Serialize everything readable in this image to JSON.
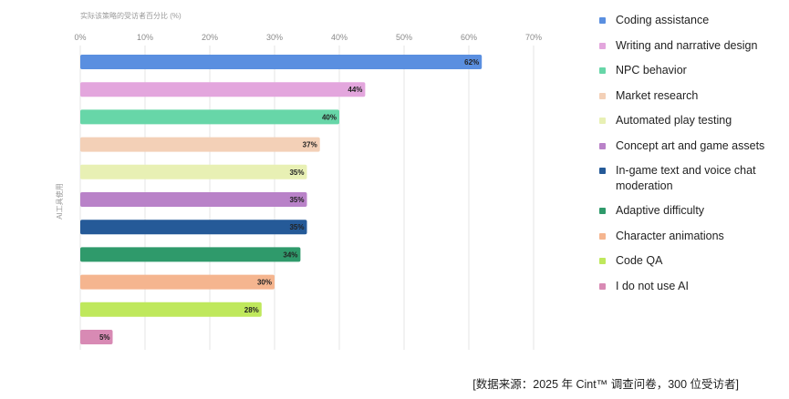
{
  "chart_data": {
    "type": "bar",
    "orientation": "horizontal",
    "title": "实际该策略的受访者百分比 (%)",
    "ylabel": "AI工具使用",
    "xlim": [
      0,
      70
    ],
    "xticks": [
      "0%",
      "10%",
      "20%",
      "30%",
      "40%",
      "50%",
      "60%",
      "70%"
    ],
    "grid": true,
    "legend_position": "right",
    "categories": [
      "Coding assistance",
      "Writing and narrative design",
      "NPC behavior",
      "Market research",
      "Automated play testing",
      "Concept art and game assets",
      "In-game text and voice chat moderation",
      "Adaptive difficulty",
      "Character animations",
      "Code QA",
      "I do not use AI"
    ],
    "values": [
      62,
      44,
      40,
      37,
      35,
      35,
      35,
      34,
      30,
      28,
      5
    ],
    "value_labels": [
      "62%",
      "44%",
      "40%",
      "37%",
      "35%",
      "35%",
      "35%",
      "34%",
      "30%",
      "28%",
      "5%"
    ],
    "colors": [
      "#5a8fe0",
      "#e3a6dd",
      "#67d6a8",
      "#f3d0b7",
      "#e8f0b4",
      "#b982c8",
      "#255a98",
      "#2f9a6b",
      "#f5b58f",
      "#bfe85c",
      "#d88ab4"
    ],
    "label_text_colors": [
      "#ffffff",
      "#222222",
      "#222222",
      "#222222",
      "#222222",
      "#222222",
      "#ffffff",
      "#222222",
      "#222222",
      "#222222",
      "#222222"
    ]
  },
  "legend_items": [
    {
      "label": "Coding assistance",
      "color": "#5a8fe0"
    },
    {
      "label": "Writing and narrative design",
      "color": "#e3a6dd"
    },
    {
      "label": "NPC behavior",
      "color": "#67d6a8"
    },
    {
      "label": "Market research",
      "color": "#f3d0b7"
    },
    {
      "label": "Automated play testing",
      "color": "#e8f0b4"
    },
    {
      "label": "Concept art and game assets",
      "color": "#b982c8"
    },
    {
      "label": "In-game text and voice chat moderation",
      "color": "#255a98"
    },
    {
      "label": "Adaptive difficulty",
      "color": "#2f9a6b"
    },
    {
      "label": "Character animations",
      "color": "#f5b58f"
    },
    {
      "label": "Code QA",
      "color": "#bfe85c"
    },
    {
      "label": "I do not use AI",
      "color": "#d88ab4"
    }
  ],
  "source": "[数据来源：2025 年 Cint™ 调查问卷，300 位受访者]"
}
